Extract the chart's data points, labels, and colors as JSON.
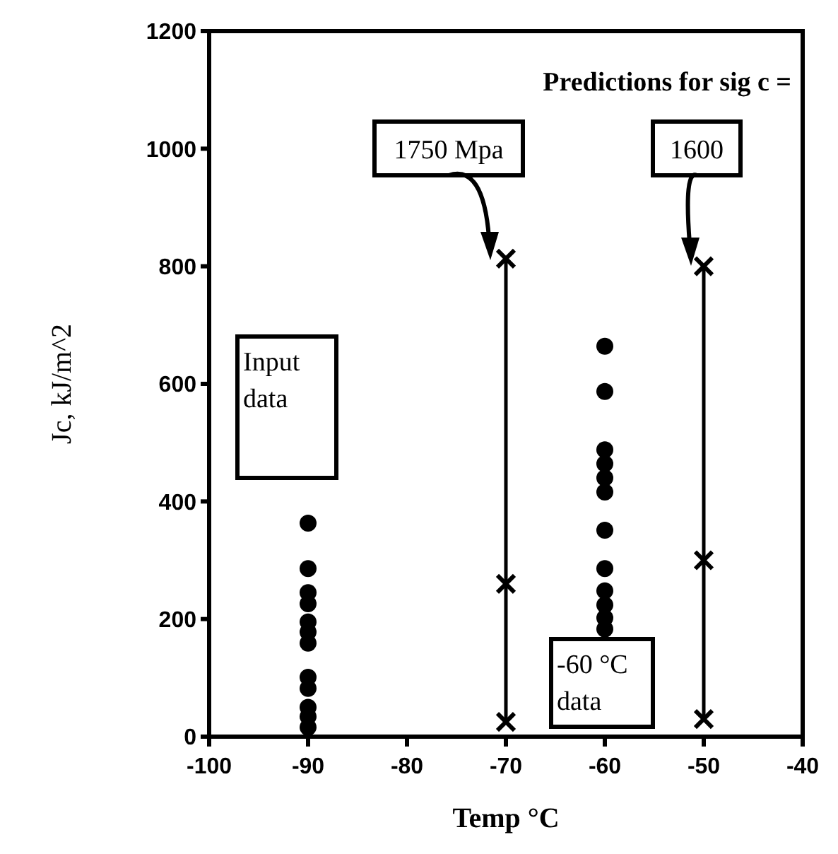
{
  "chart_data": {
    "type": "scatter",
    "xlabel": "Temp °C",
    "ylabel": "Jc, kJ/m^2",
    "xlim": [
      -100,
      -40
    ],
    "ylim": [
      0,
      1200
    ],
    "xticks": [
      -100,
      -90,
      -80,
      -70,
      -60,
      -50,
      -40
    ],
    "yticks": [
      0,
      200,
      400,
      600,
      800,
      1000,
      1200
    ],
    "grid": false,
    "series": [
      {
        "marker": "circle",
        "color": "#000000",
        "x": [
          -90,
          -90,
          -90,
          -90,
          -90,
          -90,
          -90,
          -90,
          -90,
          -90,
          -90,
          -90
        ],
        "values": [
          363,
          286,
          245,
          226,
          195,
          178,
          159,
          101,
          82,
          50,
          34,
          16
        ]
      },
      {
        "marker": "circle",
        "color": "#000000",
        "x": [
          -60,
          -60,
          -60,
          -60,
          -60,
          -60,
          -60,
          -60,
          -60,
          -60,
          -60,
          -60
        ],
        "values": [
          664,
          587,
          488,
          464,
          440,
          416,
          351,
          286,
          248,
          224,
          202,
          183
        ]
      },
      {
        "type": "line",
        "marker": "cross",
        "color": "#000000",
        "x": [
          -70,
          -70,
          -70
        ],
        "values": [
          25,
          260,
          813
        ]
      },
      {
        "type": "line",
        "marker": "cross",
        "color": "#000000",
        "x": [
          -50,
          -50,
          -50
        ],
        "values": [
          30,
          300,
          800
        ]
      }
    ],
    "annotations": [
      "Predictions for sig c =",
      "1750 Mpa",
      "1600",
      "Input data",
      "-60 °C data"
    ]
  }
}
